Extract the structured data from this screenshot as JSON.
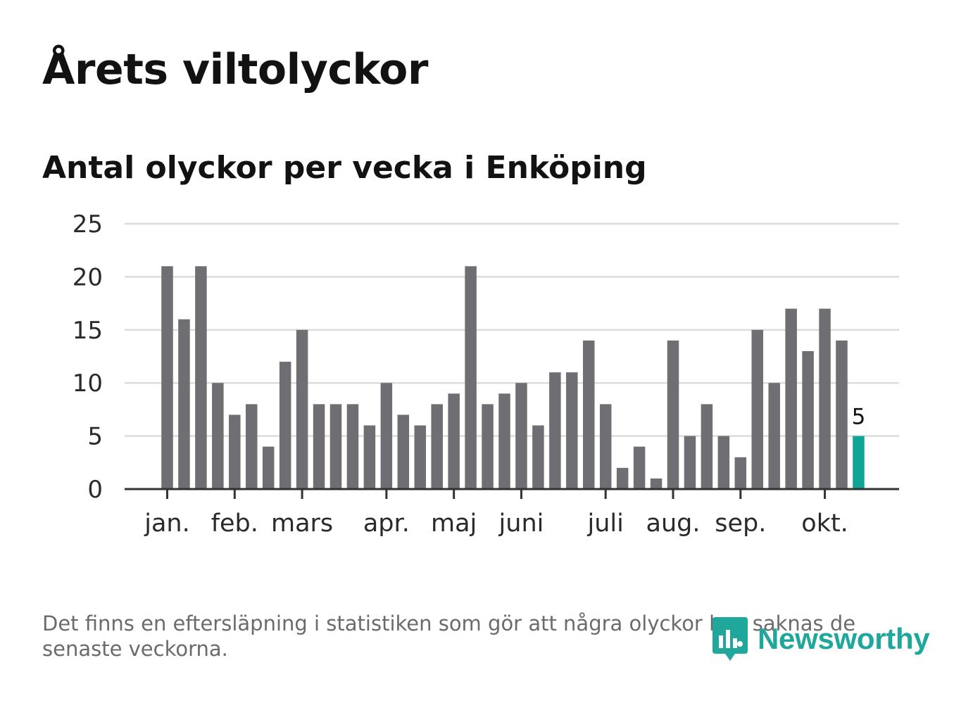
{
  "title": "Årets viltolyckor",
  "subtitle": "Antal olyckor per vecka i Enköping",
  "note": "Det finns en eftersläpning i statistiken som gör att några olyckor kan saknas de senaste veckorna.",
  "logo": {
    "text": "Newsworthy",
    "color": "#20a79b",
    "icon": "newsworthy-logo-icon"
  },
  "colors": {
    "bar": "#6f6e73",
    "highlight": "#0ea597",
    "grid": "#dcdcdc",
    "axis": "#333333",
    "text": "#2a2a2a"
  },
  "chart_data": {
    "type": "bar",
    "title": "Antal olyckor per vecka i Enköping",
    "xlabel": "",
    "ylabel": "",
    "ylim": [
      0,
      25
    ],
    "yticks": [
      "0",
      "5",
      "10",
      "15",
      "20",
      "25"
    ],
    "month_labels": [
      {
        "label": "jan.",
        "week": 1
      },
      {
        "label": "feb.",
        "week": 5
      },
      {
        "label": "mars",
        "week": 9
      },
      {
        "label": "apr.",
        "week": 14
      },
      {
        "label": "maj",
        "week": 18
      },
      {
        "label": "juni",
        "week": 22
      },
      {
        "label": "juli",
        "week": 27
      },
      {
        "label": "aug.",
        "week": 31
      },
      {
        "label": "sep.",
        "week": 35
      },
      {
        "label": "okt.",
        "week": 40
      }
    ],
    "weeks": [
      1,
      2,
      3,
      4,
      5,
      6,
      7,
      8,
      9,
      10,
      11,
      12,
      13,
      14,
      15,
      16,
      17,
      18,
      19,
      20,
      21,
      22,
      23,
      24,
      25,
      26,
      27,
      28,
      29,
      30,
      31,
      32,
      33,
      34,
      35,
      36,
      37,
      38,
      39,
      40,
      41,
      42
    ],
    "values": [
      21,
      16,
      21,
      10,
      7,
      8,
      4,
      12,
      15,
      8,
      8,
      8,
      6,
      10,
      7,
      6,
      8,
      9,
      21,
      8,
      9,
      10,
      6,
      11,
      11,
      14,
      8,
      2,
      4,
      1,
      14,
      5,
      8,
      5,
      3,
      15,
      10,
      17,
      13,
      17,
      14,
      5
    ],
    "highlight_index": 41,
    "highlight_label": "5"
  }
}
